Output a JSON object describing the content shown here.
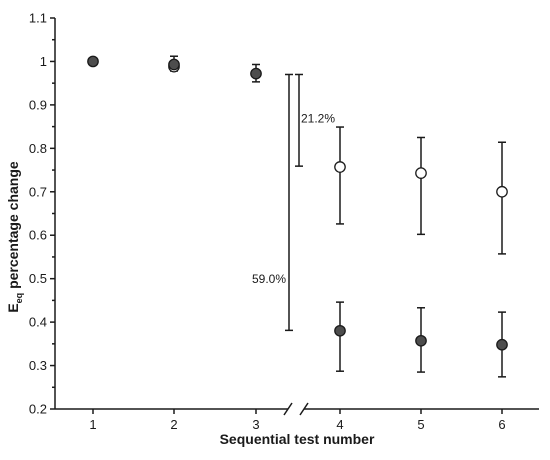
{
  "chart_data": {
    "type": "scatter",
    "xlabel": "Sequential test number",
    "ylabel": {
      "main": "E",
      "sub": "eq",
      "rest": " percentage change"
    },
    "x_ticks": [
      "1",
      "2",
      "3",
      "4",
      "5",
      "6"
    ],
    "y_ticks": [
      "0.2",
      "0.3",
      "0.4",
      "0.5",
      "0.6",
      "0.7",
      "0.8",
      "0.9",
      "1",
      "1.1"
    ],
    "ylim": [
      0.2,
      1.1
    ],
    "axis_break": "between 3 and 4",
    "series": [
      {
        "marker": "filled",
        "color": "#4d4d4d",
        "points": [
          {
            "x": 1,
            "y": 1.0,
            "err_low": 1.0,
            "err_high": 1.0
          },
          {
            "x": 2,
            "y": 0.993,
            "err_low": 0.978,
            "err_high": 1.012
          },
          {
            "x": 3,
            "y": 0.972,
            "err_low": 0.953,
            "err_high": 0.993
          },
          {
            "x": 4,
            "y": 0.38,
            "err_low": 0.287,
            "err_high": 0.446
          },
          {
            "x": 5,
            "y": 0.357,
            "err_low": 0.285,
            "err_high": 0.433
          },
          {
            "x": 6,
            "y": 0.348,
            "err_low": 0.274,
            "err_high": 0.423
          }
        ]
      },
      {
        "marker": "open",
        "color": "#ffffff",
        "points": [
          {
            "x": 2,
            "y": 0.988
          },
          {
            "x": 4,
            "y": 0.757,
            "err_low": 0.626,
            "err_high": 0.849
          },
          {
            "x": 5,
            "y": 0.743,
            "err_low": 0.602,
            "err_high": 0.825
          },
          {
            "x": 6,
            "y": 0.7,
            "err_low": 0.557,
            "err_high": 0.814
          }
        ]
      }
    ],
    "annotations": [
      {
        "label": "21.2%",
        "y_low": 0.759,
        "y_high": 0.97
      },
      {
        "label": "59.0%",
        "y_low": 0.381,
        "y_high": 0.97
      }
    ]
  }
}
